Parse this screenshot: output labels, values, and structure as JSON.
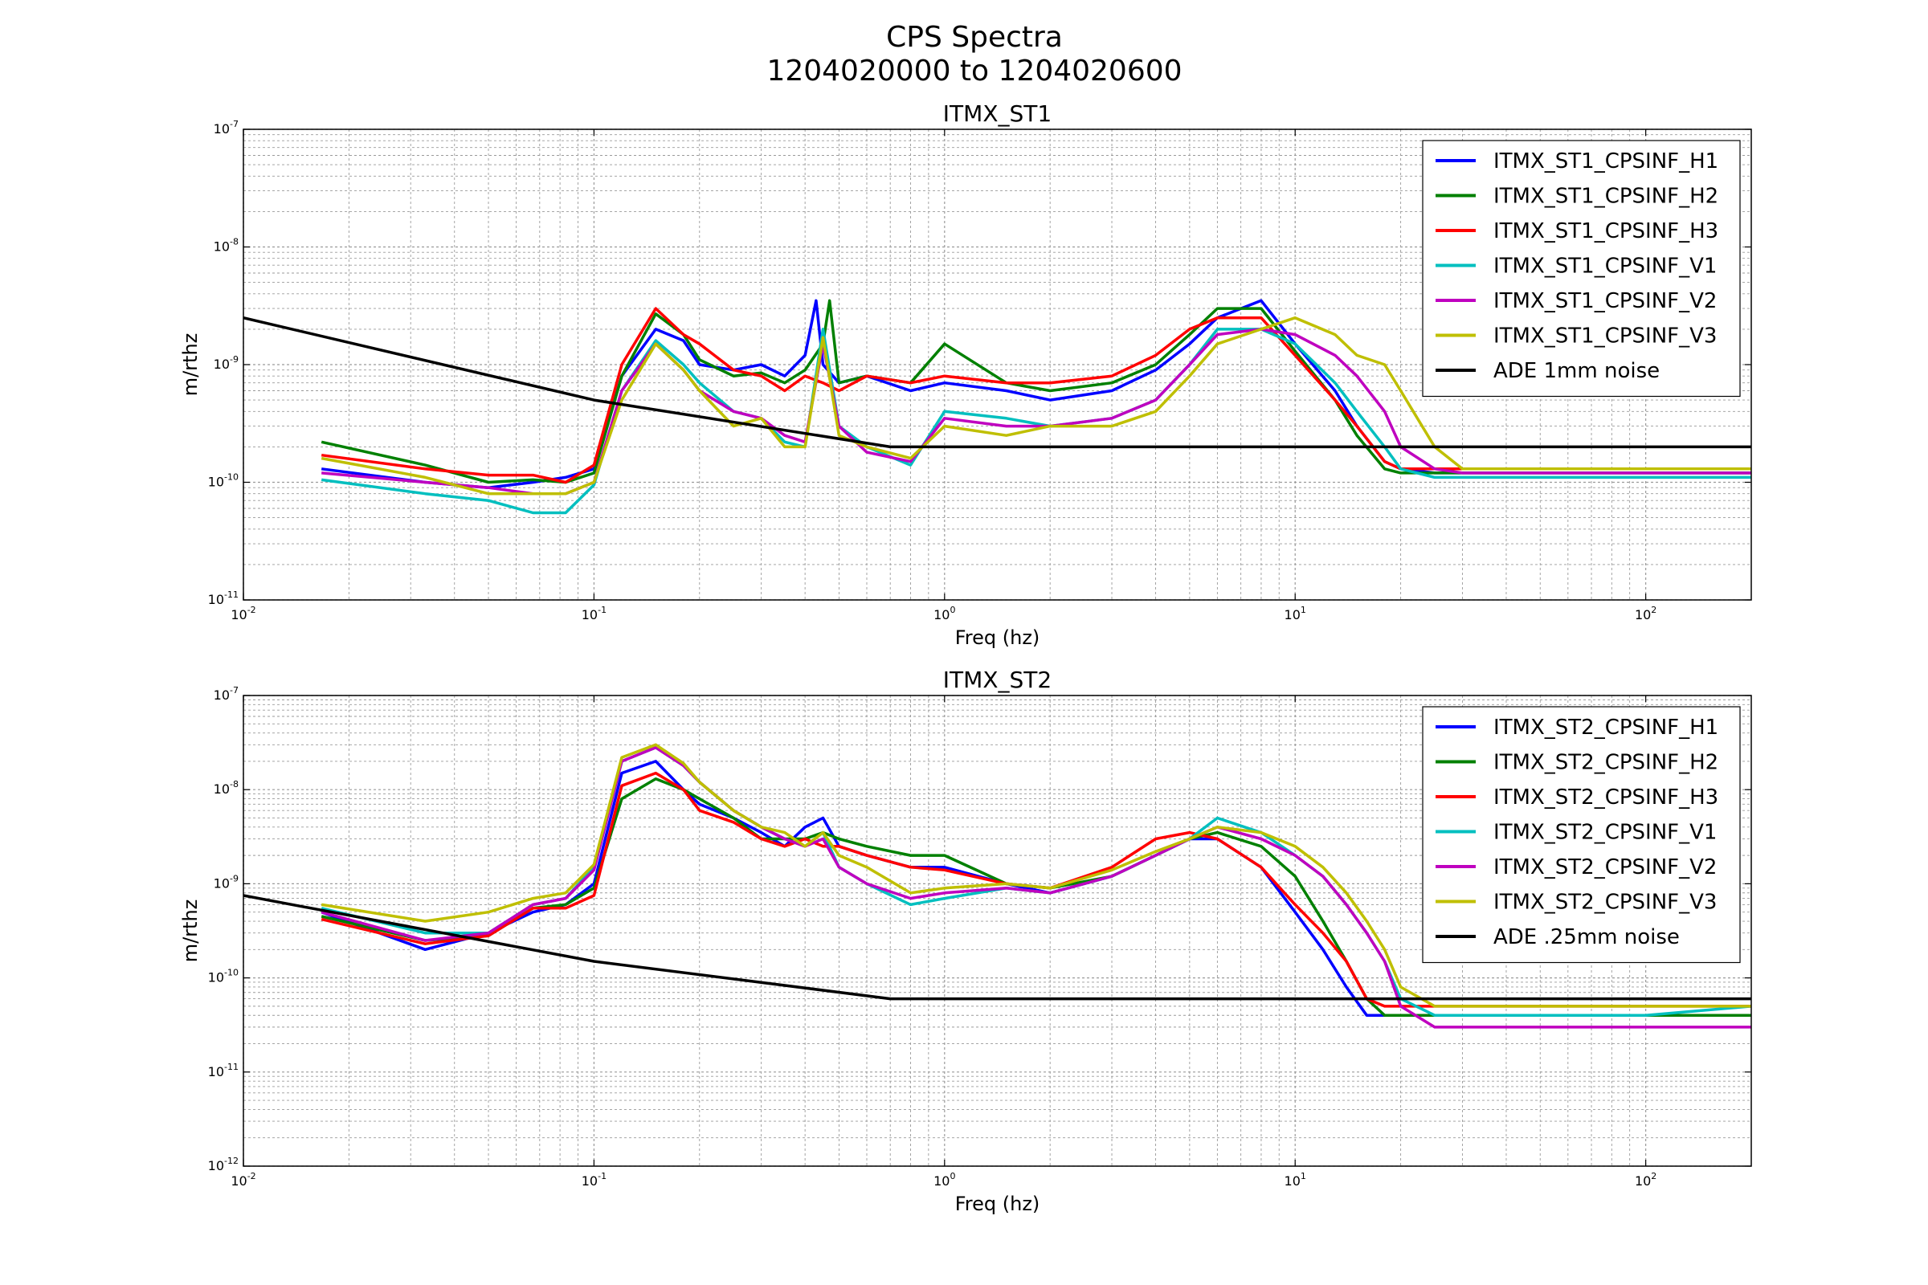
{
  "figure": {
    "title_line1": "CPS Spectra",
    "title_line2": "1204020000 to 1204020600"
  },
  "chart_data": [
    {
      "type": "line",
      "title": "ITMX_ST1",
      "xlabel": "Freq (hz)",
      "ylabel": "m/rthz",
      "xscale": "log",
      "yscale": "log",
      "xlim": [
        0.01,
        200
      ],
      "ylim": [
        1e-11,
        1e-07
      ],
      "xticks": [
        0.01,
        0.1,
        1,
        10,
        100
      ],
      "yticks": [
        1e-11,
        1e-10,
        1e-09,
        1e-08,
        1e-07
      ],
      "grid": true,
      "legend_position": "top-right",
      "series": [
        {
          "name": "ITMX_ST1_CPSINF_H1",
          "color": "#0000ff",
          "x": [
            0.0167,
            0.033,
            0.05,
            0.067,
            0.083,
            0.1,
            0.12,
            0.15,
            0.18,
            0.2,
            0.25,
            0.3,
            0.35,
            0.4,
            0.43,
            0.45,
            0.5,
            0.6,
            0.8,
            1.0,
            1.5,
            2,
            3,
            4,
            5,
            6,
            8,
            10,
            13,
            15,
            18,
            20,
            25,
            30,
            50,
            100,
            200
          ],
          "y": [
            1.3e-10,
            1e-10,
            9e-11,
            1e-10,
            1.1e-10,
            1.3e-10,
            8e-10,
            2e-09,
            1.6e-09,
            1e-09,
            9e-10,
            1e-09,
            8e-10,
            1.2e-09,
            3.5e-09,
            1e-09,
            7e-10,
            8e-10,
            6e-10,
            7e-10,
            6e-10,
            5e-10,
            6e-10,
            9e-10,
            1.5e-09,
            2.5e-09,
            3.5e-09,
            1.5e-09,
            6e-10,
            3e-10,
            1.5e-10,
            1.3e-10,
            1.2e-10,
            1.2e-10,
            1.2e-10,
            1.2e-10,
            1.2e-10
          ]
        },
        {
          "name": "ITMX_ST1_CPSINF_H2",
          "color": "#008000",
          "x": [
            0.0167,
            0.033,
            0.05,
            0.067,
            0.083,
            0.1,
            0.12,
            0.15,
            0.18,
            0.2,
            0.25,
            0.3,
            0.35,
            0.4,
            0.45,
            0.47,
            0.5,
            0.6,
            0.8,
            1.0,
            1.5,
            2,
            3,
            4,
            5,
            6,
            8,
            10,
            13,
            15,
            18,
            20,
            25,
            30,
            50,
            100,
            200
          ],
          "y": [
            2.2e-10,
            1.4e-10,
            1e-10,
            1.05e-10,
            1e-10,
            1.2e-10,
            8e-10,
            2.7e-09,
            1.8e-09,
            1.1e-09,
            8e-10,
            8.5e-10,
            7e-10,
            9e-10,
            1.5e-09,
            3.5e-09,
            7e-10,
            8e-10,
            7e-10,
            1.5e-09,
            7e-10,
            6e-10,
            7e-10,
            1e-09,
            1.8e-09,
            3e-09,
            3e-09,
            1.3e-09,
            5e-10,
            2.5e-10,
            1.3e-10,
            1.2e-10,
            1.2e-10,
            1.2e-10,
            1.2e-10,
            1.2e-10,
            1.2e-10
          ]
        },
        {
          "name": "ITMX_ST1_CPSINF_H3",
          "color": "#ff0000",
          "x": [
            0.0167,
            0.033,
            0.05,
            0.067,
            0.083,
            0.1,
            0.12,
            0.15,
            0.18,
            0.2,
            0.25,
            0.3,
            0.35,
            0.4,
            0.45,
            0.5,
            0.6,
            0.8,
            1.0,
            1.5,
            2,
            3,
            4,
            5,
            6,
            8,
            10,
            13,
            15,
            18,
            20,
            25,
            30,
            50,
            100,
            200
          ],
          "y": [
            1.7e-10,
            1.3e-10,
            1.15e-10,
            1.15e-10,
            1e-10,
            1.4e-10,
            1e-09,
            3e-09,
            1.8e-09,
            1.5e-09,
            9e-10,
            8e-10,
            6e-10,
            8e-10,
            7e-10,
            6e-10,
            8e-10,
            7e-10,
            8e-10,
            7e-10,
            7e-10,
            8e-10,
            1.2e-09,
            2e-09,
            2.5e-09,
            2.5e-09,
            1.2e-09,
            5e-10,
            3e-10,
            1.5e-10,
            1.3e-10,
            1.3e-10,
            1.3e-10,
            1.3e-10,
            1.3e-10,
            1.3e-10
          ]
        },
        {
          "name": "ITMX_ST1_CPSINF_V1",
          "color": "#00bfbf",
          "x": [
            0.0167,
            0.033,
            0.05,
            0.067,
            0.083,
            0.1,
            0.12,
            0.15,
            0.18,
            0.2,
            0.25,
            0.3,
            0.35,
            0.4,
            0.45,
            0.5,
            0.6,
            0.8,
            1.0,
            1.5,
            2,
            3,
            4,
            5,
            6,
            8,
            10,
            13,
            15,
            18,
            20,
            25,
            30,
            50,
            100,
            200
          ],
          "y": [
            1.05e-10,
            8e-11,
            7e-11,
            5.5e-11,
            5.5e-11,
            9.5e-11,
            6e-10,
            1.6e-09,
            1e-09,
            7e-10,
            4e-10,
            3.5e-10,
            2.2e-10,
            2e-10,
            2e-09,
            3e-10,
            2e-10,
            1.4e-10,
            4e-10,
            3.5e-10,
            3e-10,
            3.5e-10,
            5e-10,
            1e-09,
            2e-09,
            2e-09,
            1.5e-09,
            7e-10,
            4e-10,
            2e-10,
            1.3e-10,
            1.1e-10,
            1.1e-10,
            1.1e-10,
            1.1e-10,
            1.1e-10
          ]
        },
        {
          "name": "ITMX_ST1_CPSINF_V2",
          "color": "#bf00bf",
          "x": [
            0.0167,
            0.033,
            0.05,
            0.067,
            0.083,
            0.1,
            0.12,
            0.15,
            0.18,
            0.2,
            0.25,
            0.3,
            0.35,
            0.4,
            0.45,
            0.5,
            0.6,
            0.8,
            1.0,
            1.5,
            2,
            3,
            4,
            5,
            6,
            8,
            10,
            13,
            15,
            18,
            20,
            25,
            30,
            50,
            100,
            200
          ],
          "y": [
            1.2e-10,
            1e-10,
            9e-11,
            8e-11,
            8e-11,
            1e-10,
            6e-10,
            1.5e-09,
            9e-10,
            6e-10,
            4e-10,
            3.5e-10,
            2.5e-10,
            2.2e-10,
            1.5e-09,
            3e-10,
            1.8e-10,
            1.5e-10,
            3.5e-10,
            3e-10,
            3e-10,
            3.5e-10,
            5e-10,
            1e-09,
            1.8e-09,
            2e-09,
            1.8e-09,
            1.2e-09,
            8e-10,
            4e-10,
            2e-10,
            1.3e-10,
            1.2e-10,
            1.2e-10,
            1.2e-10,
            1.2e-10
          ]
        },
        {
          "name": "ITMX_ST1_CPSINF_V3",
          "color": "#bfbf00",
          "x": [
            0.0167,
            0.033,
            0.05,
            0.067,
            0.083,
            0.1,
            0.12,
            0.15,
            0.18,
            0.2,
            0.25,
            0.3,
            0.35,
            0.4,
            0.45,
            0.5,
            0.6,
            0.8,
            1.0,
            1.5,
            2,
            3,
            4,
            5,
            6,
            8,
            10,
            13,
            15,
            18,
            20,
            25,
            30,
            50,
            100,
            200
          ],
          "y": [
            1.6e-10,
            1.1e-10,
            8e-11,
            8e-11,
            8e-11,
            1e-10,
            5e-10,
            1.5e-09,
            9e-10,
            6e-10,
            3e-10,
            3.5e-10,
            2e-10,
            2e-10,
            1.7e-09,
            2.5e-10,
            2e-10,
            1.6e-10,
            3e-10,
            2.5e-10,
            3e-10,
            3e-10,
            4e-10,
            8e-10,
            1.5e-09,
            2e-09,
            2.5e-09,
            1.8e-09,
            1.2e-09,
            1e-09,
            6e-10,
            2e-10,
            1.3e-10,
            1.3e-10,
            1.3e-10,
            1.3e-10
          ]
        },
        {
          "name": "ADE 1mm noise",
          "color": "#000000",
          "x": [
            0.01,
            0.1,
            0.7,
            200
          ],
          "y": [
            2.5e-09,
            5e-10,
            2e-10,
            2e-10
          ]
        }
      ]
    },
    {
      "type": "line",
      "title": "ITMX_ST2",
      "xlabel": "Freq (hz)",
      "ylabel": "m/rthz",
      "xscale": "log",
      "yscale": "log",
      "xlim": [
        0.01,
        200
      ],
      "ylim": [
        1e-12,
        1e-07
      ],
      "xticks": [
        0.01,
        0.1,
        1,
        10,
        100
      ],
      "yticks": [
        1e-12,
        1e-11,
        1e-10,
        1e-09,
        1e-08,
        1e-07
      ],
      "grid": true,
      "legend_position": "top-right",
      "series": [
        {
          "name": "ITMX_ST2_CPSINF_H1",
          "color": "#0000ff",
          "x": [
            0.0167,
            0.033,
            0.05,
            0.067,
            0.083,
            0.1,
            0.12,
            0.15,
            0.18,
            0.2,
            0.25,
            0.3,
            0.35,
            0.4,
            0.45,
            0.5,
            0.6,
            0.8,
            1.0,
            1.5,
            2,
            3,
            4,
            5,
            6,
            8,
            10,
            12,
            14,
            16,
            18,
            20,
            25,
            30,
            50,
            100,
            200
          ],
          "y": [
            5e-10,
            2e-10,
            3e-10,
            5e-10,
            6e-10,
            1e-09,
            1.5e-08,
            2e-08,
            1e-08,
            7e-09,
            5e-09,
            3.5e-09,
            2.5e-09,
            4e-09,
            5e-09,
            2.5e-09,
            2e-09,
            1.5e-09,
            1.5e-09,
            1e-09,
            8e-10,
            1.2e-09,
            2e-09,
            3e-09,
            3e-09,
            1.5e-09,
            5e-10,
            2e-10,
            8e-11,
            4e-11,
            4e-11,
            4e-11,
            4e-11,
            4e-11,
            4e-11,
            4e-11,
            4e-11
          ]
        },
        {
          "name": "ITMX_ST2_CPSINF_H2",
          "color": "#008000",
          "x": [
            0.0167,
            0.033,
            0.05,
            0.067,
            0.083,
            0.1,
            0.12,
            0.15,
            0.18,
            0.2,
            0.25,
            0.3,
            0.35,
            0.4,
            0.45,
            0.5,
            0.6,
            0.8,
            1.0,
            1.5,
            2,
            3,
            4,
            5,
            6,
            8,
            10,
            12,
            14,
            16,
            18,
            20,
            25,
            30,
            50,
            100,
            200
          ],
          "y": [
            4.5e-10,
            2.5e-10,
            2.8e-10,
            5.5e-10,
            6e-10,
            9e-10,
            8e-09,
            1.3e-08,
            1e-08,
            8e-09,
            5e-09,
            3e-09,
            3e-09,
            3e-09,
            3.5e-09,
            3e-09,
            2.5e-09,
            2e-09,
            2e-09,
            1e-09,
            9e-10,
            1.2e-09,
            2e-09,
            3e-09,
            3.5e-09,
            2.5e-09,
            1.2e-09,
            4e-10,
            1.5e-10,
            6e-11,
            4e-11,
            4e-11,
            4e-11,
            4e-11,
            4e-11,
            4e-11,
            4e-11
          ]
        },
        {
          "name": "ITMX_ST2_CPSINF_H3",
          "color": "#ff0000",
          "x": [
            0.0167,
            0.033,
            0.05,
            0.067,
            0.083,
            0.1,
            0.12,
            0.15,
            0.18,
            0.2,
            0.25,
            0.3,
            0.35,
            0.4,
            0.45,
            0.5,
            0.6,
            0.8,
            1.0,
            1.5,
            2,
            3,
            4,
            5,
            6,
            8,
            10,
            12,
            14,
            16,
            18,
            20,
            25,
            30,
            50,
            100,
            200
          ],
          "y": [
            4.2e-10,
            2.3e-10,
            2.8e-10,
            5.5e-10,
            5.5e-10,
            7.5e-10,
            1.1e-08,
            1.5e-08,
            1e-08,
            6e-09,
            4.5e-09,
            3e-09,
            2.5e-09,
            3e-09,
            2.5e-09,
            2.5e-09,
            2e-09,
            1.5e-09,
            1.4e-09,
            1e-09,
            9e-10,
            1.5e-09,
            3e-09,
            3.5e-09,
            3e-09,
            1.5e-09,
            6e-10,
            3e-10,
            1.5e-10,
            6e-11,
            5e-11,
            5e-11,
            5e-11,
            5e-11,
            5e-11,
            5e-11,
            5e-11
          ]
        },
        {
          "name": "ITMX_ST2_CPSINF_V1",
          "color": "#00bfbf",
          "x": [
            0.0167,
            0.033,
            0.05,
            0.067,
            0.083,
            0.1,
            0.12,
            0.15,
            0.18,
            0.2,
            0.25,
            0.3,
            0.35,
            0.4,
            0.45,
            0.5,
            0.6,
            0.8,
            1.0,
            1.5,
            2,
            3,
            4,
            5,
            6,
            8,
            10,
            12,
            14,
            16,
            18,
            20,
            25,
            30,
            50,
            100,
            200
          ],
          "y": [
            5.5e-10,
            3e-10,
            3e-10,
            6e-10,
            7e-10,
            1.5e-09,
            2e-08,
            2.8e-08,
            1.8e-08,
            1.2e-08,
            6e-09,
            4e-09,
            3e-09,
            2.5e-09,
            3.5e-09,
            1.5e-09,
            1e-09,
            6e-10,
            7e-10,
            9e-10,
            8e-10,
            1.2e-09,
            2e-09,
            3e-09,
            5e-09,
            3.5e-09,
            2e-09,
            1.2e-09,
            6e-10,
            3e-10,
            1.5e-10,
            6e-11,
            4e-11,
            4e-11,
            4e-11,
            4e-11,
            5e-11
          ]
        },
        {
          "name": "ITMX_ST2_CPSINF_V2",
          "color": "#bf00bf",
          "x": [
            0.0167,
            0.033,
            0.05,
            0.067,
            0.083,
            0.1,
            0.12,
            0.15,
            0.18,
            0.2,
            0.25,
            0.3,
            0.35,
            0.4,
            0.45,
            0.5,
            0.6,
            0.8,
            1.0,
            1.5,
            2,
            3,
            4,
            5,
            6,
            8,
            10,
            12,
            14,
            16,
            18,
            20,
            25,
            30,
            50,
            100,
            200
          ],
          "y": [
            5e-10,
            2.5e-10,
            3e-10,
            6e-10,
            7e-10,
            1.4e-09,
            2e-08,
            2.8e-08,
            1.8e-08,
            1.2e-08,
            6e-09,
            4e-09,
            3e-09,
            2.5e-09,
            3e-09,
            1.5e-09,
            1e-09,
            7e-10,
            8e-10,
            9e-10,
            8e-10,
            1.2e-09,
            2e-09,
            3e-09,
            4e-09,
            3e-09,
            2e-09,
            1.2e-09,
            6e-10,
            3e-10,
            1.5e-10,
            5e-11,
            3e-11,
            3e-11,
            3e-11,
            3e-11,
            3e-11
          ]
        },
        {
          "name": "ITMX_ST2_CPSINF_V3",
          "color": "#bfbf00",
          "x": [
            0.0167,
            0.033,
            0.05,
            0.067,
            0.083,
            0.1,
            0.12,
            0.15,
            0.18,
            0.2,
            0.25,
            0.3,
            0.35,
            0.4,
            0.45,
            0.5,
            0.6,
            0.8,
            1.0,
            1.5,
            2,
            3,
            4,
            5,
            6,
            8,
            10,
            12,
            14,
            16,
            18,
            20,
            25,
            30,
            50,
            100,
            200
          ],
          "y": [
            6e-10,
            4e-10,
            5e-10,
            7e-10,
            8e-10,
            1.6e-09,
            2.2e-08,
            3e-08,
            1.9e-08,
            1.2e-08,
            6e-09,
            4e-09,
            3.5e-09,
            2.5e-09,
            3.5e-09,
            2e-09,
            1.5e-09,
            8e-10,
            9e-10,
            1e-09,
            9e-10,
            1.4e-09,
            2.2e-09,
            3e-09,
            4e-09,
            3.5e-09,
            2.5e-09,
            1.5e-09,
            8e-10,
            4e-10,
            2e-10,
            8e-11,
            5e-11,
            5e-11,
            5e-11,
            5e-11,
            5e-11
          ]
        },
        {
          "name": "ADE .25mm noise",
          "color": "#000000",
          "x": [
            0.01,
            0.1,
            0.7,
            200
          ],
          "y": [
            7.5e-10,
            1.5e-10,
            6e-11,
            6e-11
          ]
        }
      ]
    }
  ]
}
